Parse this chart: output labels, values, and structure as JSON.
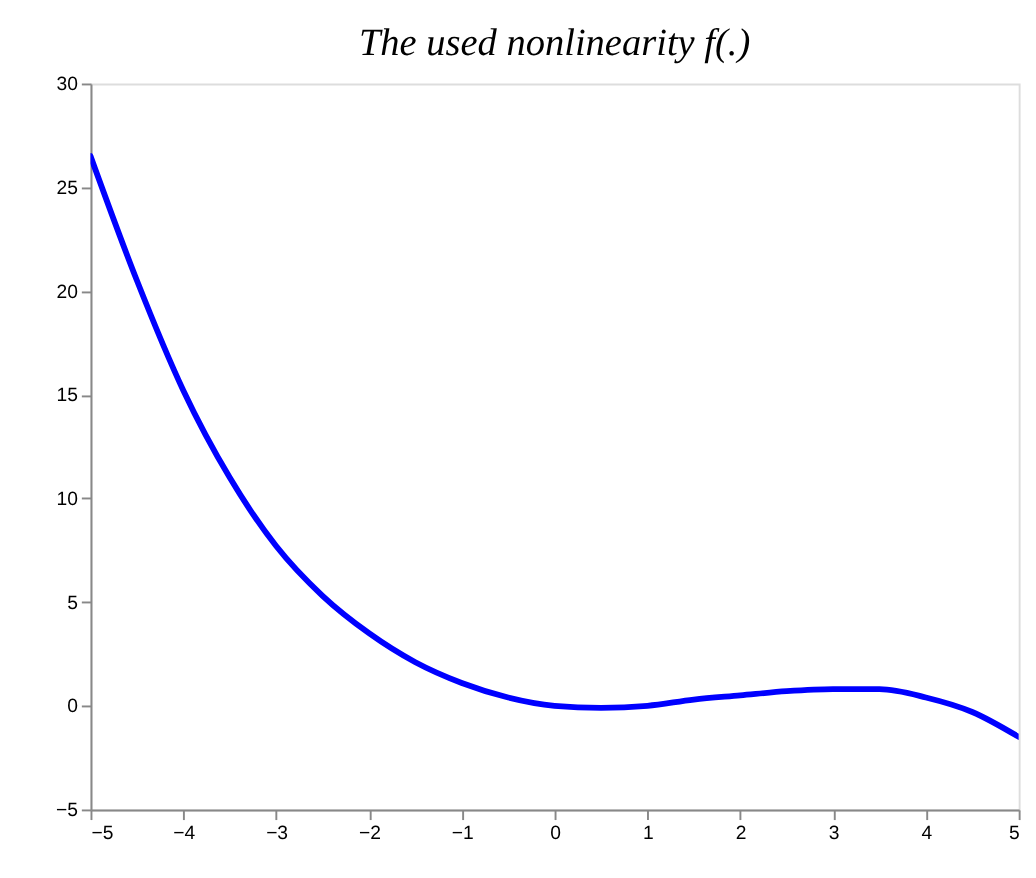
{
  "chart_data": {
    "type": "line",
    "title": "The used nonlinearity f(.)",
    "x": [
      -5,
      -4.5,
      -4,
      -3.5,
      -3,
      -2.5,
      -2,
      -1.5,
      -1,
      -0.5,
      0,
      0.5,
      1,
      1.5,
      2,
      2.5,
      3,
      3.5,
      4,
      4.5,
      5
    ],
    "series": [
      {
        "color": "#0000ff",
        "values": [
          26.5,
          20.5,
          15.2,
          11.0,
          7.7,
          5.3,
          3.5,
          2.1,
          1.1,
          0.4,
          0.0,
          -0.1,
          0.0,
          0.3,
          0.5,
          0.7,
          0.8,
          0.8,
          0.4,
          -0.3,
          -1.5
        ]
      }
    ],
    "xlim": [
      -5,
      5
    ],
    "ylim": [
      -5,
      30
    ],
    "xticks": [
      -5,
      -4,
      -3,
      -2,
      -1,
      0,
      1,
      2,
      3,
      4,
      5
    ],
    "yticks": [
      -5,
      0,
      5,
      10,
      15,
      20,
      25,
      30
    ],
    "grid": false,
    "marker": "none",
    "line_style": "solid"
  }
}
